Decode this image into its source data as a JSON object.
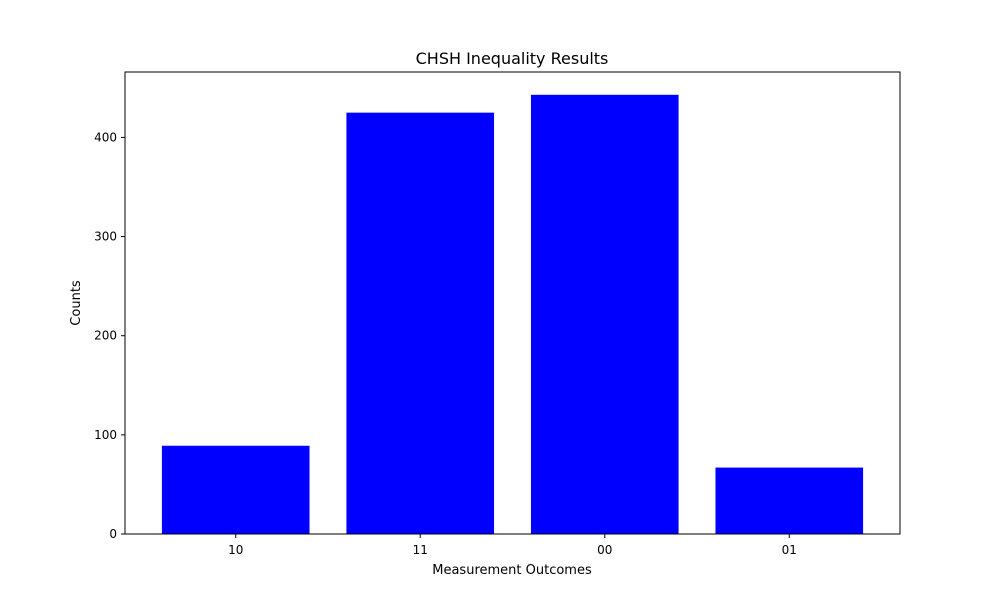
{
  "chart_data": {
    "type": "bar",
    "title": "CHSH Inequality Results",
    "xlabel": "Measurement Outcomes",
    "ylabel": "Counts",
    "categories": [
      "10",
      "11",
      "00",
      "01"
    ],
    "values": [
      89,
      425,
      443,
      67
    ],
    "ylim": [
      0,
      466
    ],
    "yticks": [
      0,
      100,
      200,
      300,
      400
    ],
    "bar_color": "#0000ff",
    "grid": false
  }
}
